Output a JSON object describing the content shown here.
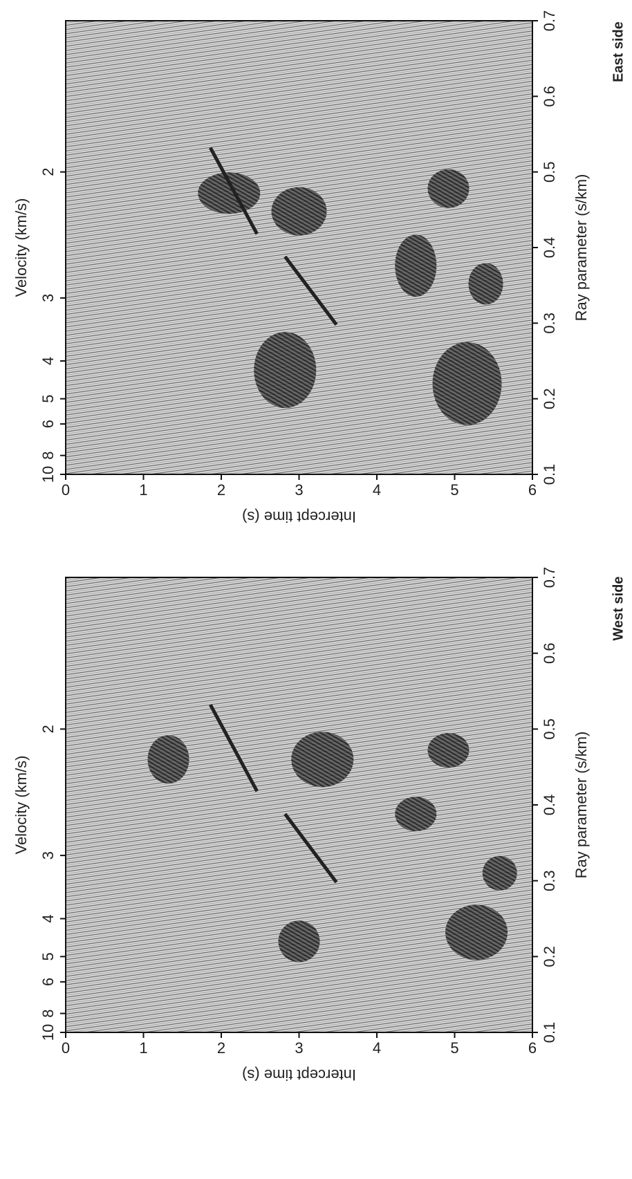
{
  "chart_data": [
    {
      "type": "seismic",
      "title": "East side",
      "xlabel": "Ray parameter (s/km)",
      "xlim": [
        0.1,
        0.7
      ],
      "xticks": [
        0.1,
        0.2,
        0.3,
        0.4,
        0.5,
        0.6,
        0.7
      ],
      "ylabel": "Intercept time (s)",
      "ylim": [
        0,
        6
      ],
      "yticks": [
        0,
        1,
        2,
        3,
        4,
        5,
        6
      ],
      "x2label": "Velocity (km/s)",
      "x2scale": "reciprocal",
      "x2ticks": [
        10,
        8,
        6,
        5,
        4,
        3,
        2
      ]
    },
    {
      "type": "seismic",
      "title": "West side",
      "xlabel": "Ray parameter (s/km)",
      "xlim": [
        0.1,
        0.7
      ],
      "xticks": [
        0.1,
        0.2,
        0.3,
        0.4,
        0.5,
        0.6,
        0.7
      ],
      "ylabel": "Intercept time (s)",
      "ylim": [
        0,
        6
      ],
      "yticks": [
        0,
        1,
        2,
        3,
        4,
        5,
        6
      ],
      "x2label": "Velocity (km/s)",
      "x2scale": "reciprocal",
      "x2ticks": [
        10,
        8,
        6,
        5,
        4,
        3,
        2
      ]
    }
  ]
}
